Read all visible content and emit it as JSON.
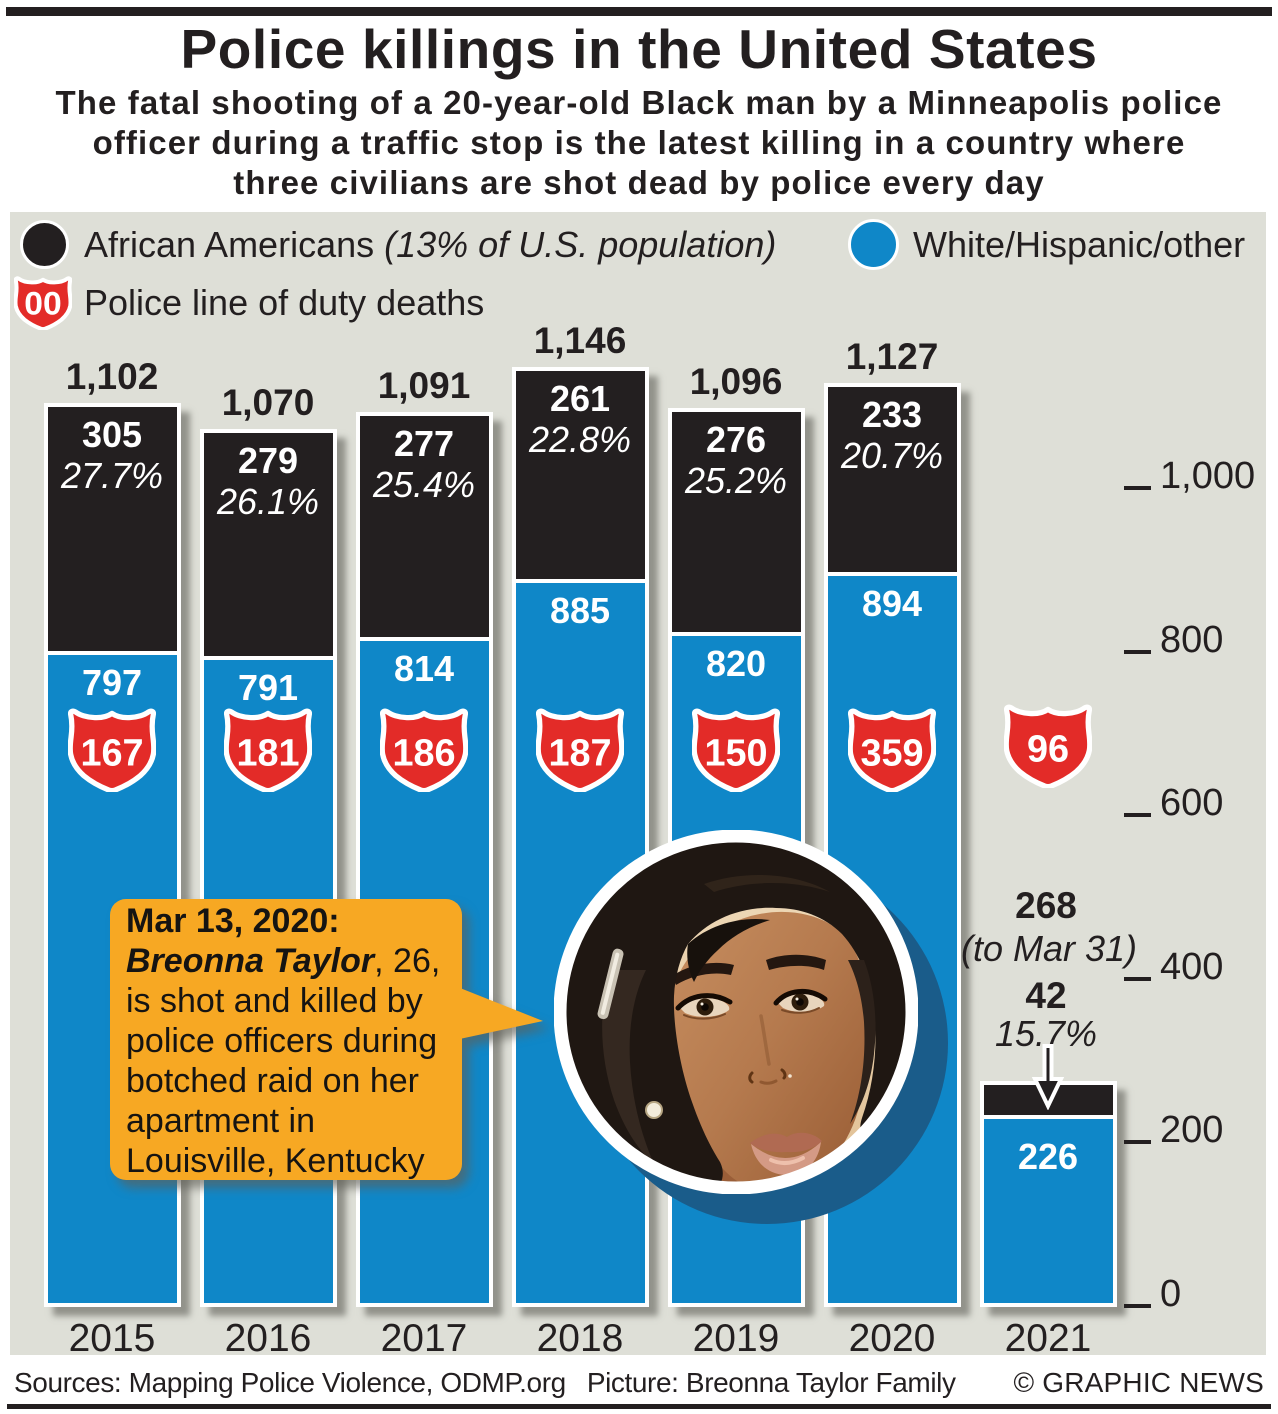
{
  "header": {
    "title": "Police killings in the United States",
    "subtitle_lines": [
      "The fatal shooting of a 20-year-old Black man by a Minneapolis police",
      "officer during a traffic stop is the latest killing in a country where",
      "three civilians are shot dead by police every day"
    ]
  },
  "legend": {
    "african_americans_label": "African Americans ",
    "african_americans_note": "(13% of U.S. population)",
    "white_label": "White/Hispanic/other",
    "duty_badge_text": "00",
    "duty_label": "Police line of duty deaths"
  },
  "chart_data": {
    "type": "bar",
    "stacked": true,
    "title": "Police killings in the United States",
    "categories": [
      "2015",
      "2016",
      "2017",
      "2018",
      "2019",
      "2020",
      "2021"
    ],
    "series": [
      {
        "name": "African Americans",
        "color": "#231f20",
        "values": [
          305,
          279,
          277,
          261,
          276,
          233,
          42
        ]
      },
      {
        "name": "White/Hispanic/other",
        "color": "#0f87c8",
        "values": [
          797,
          791,
          814,
          885,
          820,
          894,
          226
        ]
      }
    ],
    "totals": [
      "1,102",
      "1,070",
      "1,091",
      "1,146",
      "1,096",
      "1,127",
      "268"
    ],
    "black_value_labels": [
      "305",
      "279",
      "277",
      "261",
      "276",
      "233",
      "42"
    ],
    "black_pct_labels": [
      "27.7%",
      "26.1%",
      "25.4%",
      "22.8%",
      "25.2%",
      "20.7%",
      "15.7%"
    ],
    "blue_value_labels": [
      "797",
      "791",
      "814",
      "885",
      "820",
      "894",
      "226"
    ],
    "police_duty_deaths": [
      "167",
      "181",
      "186",
      "187",
      "150",
      "359",
      "96"
    ],
    "y_ticks": [
      "0",
      "200",
      "400",
      "600",
      "800",
      "1,000"
    ],
    "y_tick_values": [
      0,
      200,
      400,
      600,
      800,
      1000
    ],
    "ylim": [
      0,
      1146
    ],
    "grid": false,
    "legend_position": "top",
    "annotation_2021": {
      "total": "268",
      "note": "(to Mar 31)",
      "black_value": "42",
      "black_pct": "15.7%"
    }
  },
  "callout": {
    "line1": "Mar 13, 2020:",
    "name": "Breonna Taylor",
    "line2_rest": ", 26,",
    "line3": "is shot and killed by",
    "line4": "police officers during",
    "line5": "botched raid on her",
    "line6": "apartment in",
    "line7": "Louisville, Kentucky"
  },
  "footer": {
    "sources": "Sources: Mapping Police Violence, ODMP.org",
    "picture": "Picture: Breonna Taylor Family",
    "copyright": "© GRAPHIC NEWS"
  },
  "colors": {
    "panel_bg": "#dedfd7",
    "bar_black": "#231f20",
    "bar_blue": "#0f87c8",
    "shield_red": "#e32b28",
    "callout_orange": "#f7a823",
    "photo_shadow_blue": "#1a5c8a",
    "text": "#231f20"
  }
}
